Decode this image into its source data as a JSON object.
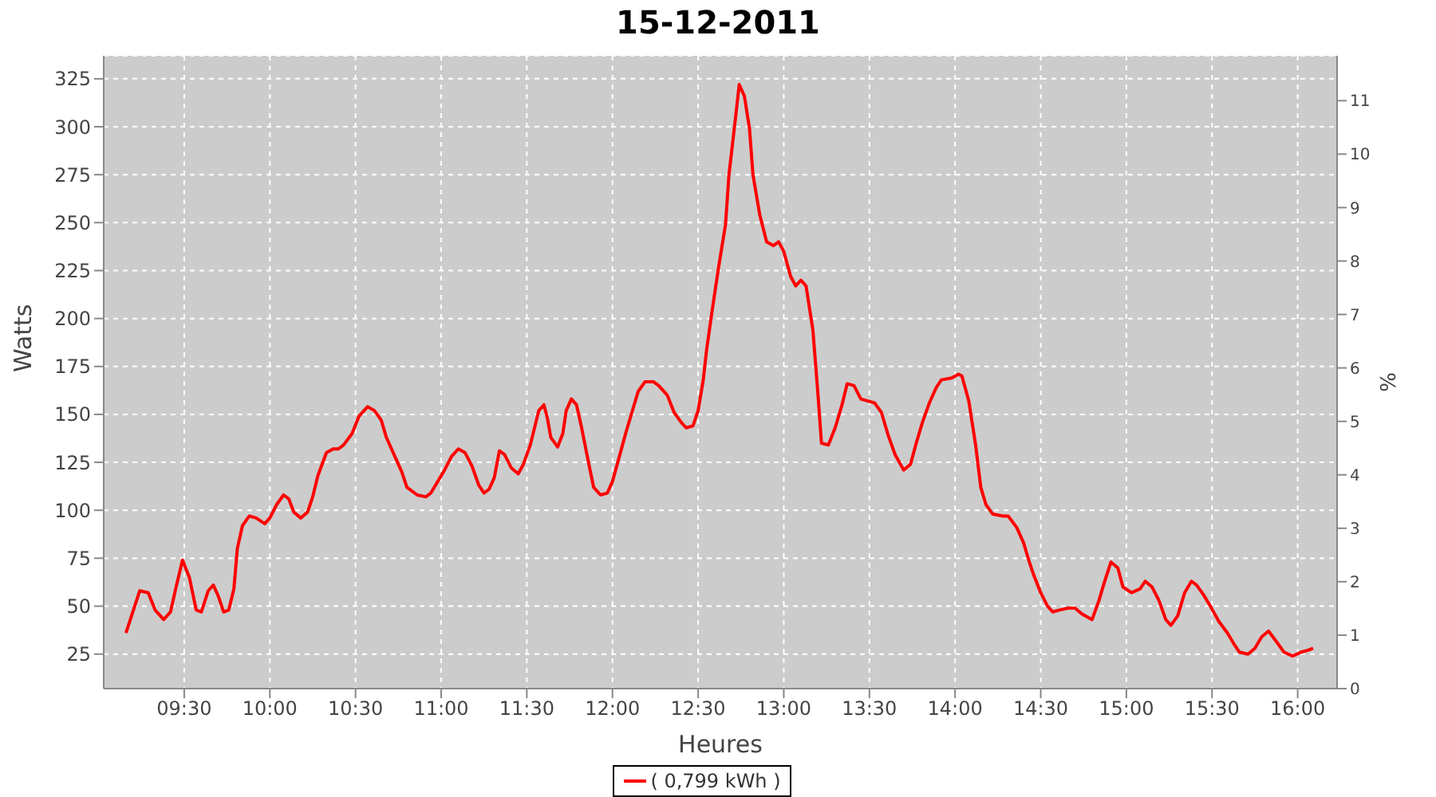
{
  "chart_data": {
    "type": "line",
    "title": "15-12-2011",
    "xlabel": "Heures",
    "ylabel": "Watts",
    "y2label": "%",
    "x": [
      9.16,
      9.24,
      9.29,
      9.33,
      9.38,
      9.42,
      9.45,
      9.49,
      9.53,
      9.57,
      9.6,
      9.64,
      9.67,
      9.7,
      9.73,
      9.76,
      9.79,
      9.81,
      9.84,
      9.88,
      9.92,
      9.97,
      10.0,
      10.04,
      10.08,
      10.11,
      10.14,
      10.18,
      10.22,
      10.25,
      10.28,
      10.33,
      10.37,
      10.4,
      10.43,
      10.48,
      10.52,
      10.57,
      10.61,
      10.65,
      10.68,
      10.73,
      10.77,
      10.8,
      10.86,
      10.91,
      10.94,
      10.98,
      11.02,
      11.06,
      11.1,
      11.14,
      11.18,
      11.22,
      11.25,
      11.28,
      11.31,
      11.34,
      11.37,
      11.41,
      11.45,
      11.48,
      11.52,
      11.57,
      11.6,
      11.62,
      11.64,
      11.68,
      11.71,
      11.73,
      11.76,
      11.79,
      11.82,
      11.86,
      11.89,
      11.93,
      11.97,
      12.0,
      12.04,
      12.08,
      12.12,
      12.15,
      12.19,
      12.24,
      12.27,
      12.32,
      12.36,
      12.4,
      12.43,
      12.47,
      12.5,
      12.53,
      12.55,
      12.58,
      12.62,
      12.66,
      12.68,
      12.72,
      12.74,
      12.77,
      12.8,
      12.82,
      12.86,
      12.9,
      12.94,
      12.97,
      13.0,
      13.04,
      13.07,
      13.1,
      13.13,
      13.17,
      13.2,
      13.22,
      13.26,
      13.3,
      13.34,
      13.37,
      13.41,
      13.45,
      13.49,
      13.53,
      13.57,
      13.61,
      13.65,
      13.7,
      13.74,
      13.77,
      13.81,
      13.85,
      13.89,
      13.92,
      13.98,
      14.02,
      14.04,
      14.08,
      14.12,
      14.15,
      14.18,
      14.22,
      14.28,
      14.31,
      14.36,
      14.4,
      14.43,
      14.46,
      14.5,
      14.54,
      14.57,
      14.61,
      14.66,
      14.7,
      14.74,
      14.8,
      14.84,
      14.87,
      14.91,
      14.95,
      14.98,
      15.03,
      15.08,
      15.11,
      15.15,
      15.19,
      15.23,
      15.26,
      15.3,
      15.34,
      15.38,
      15.41,
      15.45,
      15.49,
      15.54,
      15.59,
      15.63,
      15.66,
      15.71,
      15.75,
      15.79,
      15.83,
      15.88,
      15.92,
      15.97,
      16.02,
      16.06,
      16.09
    ],
    "series": [
      {
        "name": "( 0,799 kWh )",
        "color": "#ff0000",
        "values": [
          36,
          58,
          57,
          48,
          43,
          47,
          59,
          74,
          65,
          48,
          47,
          58,
          61,
          55,
          47,
          48,
          59,
          80,
          92,
          97,
          96,
          93,
          96,
          103,
          108,
          106,
          99,
          96,
          99,
          107,
          118,
          130,
          132,
          132,
          134,
          140,
          149,
          154,
          152,
          147,
          138,
          128,
          120,
          112,
          108,
          107,
          109,
          115,
          121,
          128,
          132,
          130,
          123,
          113,
          109,
          111,
          117,
          131,
          129,
          122,
          119,
          124,
          134,
          152,
          155,
          148,
          138,
          133,
          140,
          152,
          158,
          155,
          143,
          125,
          112,
          108,
          109,
          115,
          128,
          141,
          153,
          162,
          167,
          167,
          165,
          160,
          151,
          146,
          143,
          144,
          152,
          168,
          184,
          203,
          227,
          249,
          275,
          306,
          322,
          316,
          299,
          275,
          254,
          240,
          238,
          240,
          235,
          222,
          217,
          220,
          217,
          194,
          160,
          135,
          134,
          143,
          155,
          166,
          165,
          158,
          157,
          156,
          151,
          139,
          129,
          121,
          124,
          134,
          146,
          156,
          164,
          168,
          169,
          171,
          170,
          157,
          134,
          112,
          103,
          98,
          97,
          97,
          91,
          83,
          74,
          66,
          57,
          50,
          47,
          48,
          49,
          49,
          46,
          43,
          53,
          62,
          73,
          70,
          60,
          57,
          59,
          63,
          60,
          53,
          43,
          40,
          45,
          57,
          63,
          61,
          56,
          50,
          42,
          36,
          30,
          26,
          25,
          28,
          34,
          37,
          31,
          26,
          24,
          26,
          27,
          28
        ]
      }
    ],
    "xlim": [
      9.03,
      16.23
    ],
    "xticks": [
      {
        "value": 9.5,
        "label": "09:30"
      },
      {
        "value": 10,
        "label": "10:00"
      },
      {
        "value": 10.5,
        "label": "10:30"
      },
      {
        "value": 11,
        "label": "11:00"
      },
      {
        "value": 11.5,
        "label": "11:30"
      },
      {
        "value": 12,
        "label": "12:00"
      },
      {
        "value": 12.5,
        "label": "12:30"
      },
      {
        "value": 13,
        "label": "13:00"
      },
      {
        "value": 13.5,
        "label": "13:30"
      },
      {
        "value": 14,
        "label": "14:00"
      },
      {
        "value": 14.5,
        "label": "14:30"
      },
      {
        "value": 15,
        "label": "15:00"
      },
      {
        "value": 15.5,
        "label": "15:30"
      },
      {
        "value": 16,
        "label": "16:00"
      }
    ],
    "ylim": [
      7,
      337
    ],
    "yticks": [
      25,
      50,
      75,
      100,
      125,
      150,
      175,
      200,
      225,
      250,
      275,
      300,
      325
    ],
    "y2lim": [
      0,
      11.84
    ],
    "y2ticks": [
      0,
      1,
      2,
      3,
      4,
      5,
      6,
      7,
      8,
      9,
      10,
      11
    ],
    "grid": true,
    "legend": "bottom",
    "marker": "none",
    "line_style": "solid"
  }
}
